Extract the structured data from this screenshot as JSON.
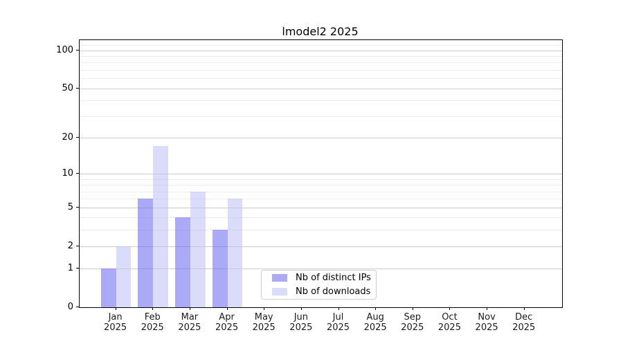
{
  "chart_data": {
    "type": "bar",
    "title": "lmodel2 2025",
    "categories": [
      "Jan 2025",
      "Feb 2025",
      "Mar 2025",
      "Apr 2025",
      "May 2025",
      "Jun 2025",
      "Jul 2025",
      "Aug 2025",
      "Sep 2025",
      "Oct 2025",
      "Nov 2025",
      "Dec 2025"
    ],
    "series": [
      {
        "name": "Nb of distinct IPs",
        "color": "rgba(100,100,240,0.55)",
        "values": [
          1,
          6,
          4,
          3,
          0,
          0,
          0,
          0,
          0,
          0,
          0,
          0
        ]
      },
      {
        "name": "Nb of downloads",
        "color": "rgba(190,190,245,0.55)",
        "values": [
          2,
          17,
          7,
          6,
          0,
          0,
          0,
          0,
          0,
          0,
          0,
          0
        ]
      }
    ],
    "yscale": "log1p",
    "ylim": [
      0,
      120
    ],
    "yticks": [
      0,
      1,
      2,
      5,
      10,
      20,
      50,
      100
    ],
    "yticks_minor": [
      3,
      4,
      6,
      7,
      8,
      9,
      30,
      40,
      60,
      70,
      80,
      90,
      110
    ],
    "grid": true,
    "legend_position": "lower center",
    "colors": {
      "axis": "#000000",
      "grid_major": "#cdcdcd",
      "grid_minor": "#ececec",
      "legend_border": "#cccccc"
    }
  }
}
